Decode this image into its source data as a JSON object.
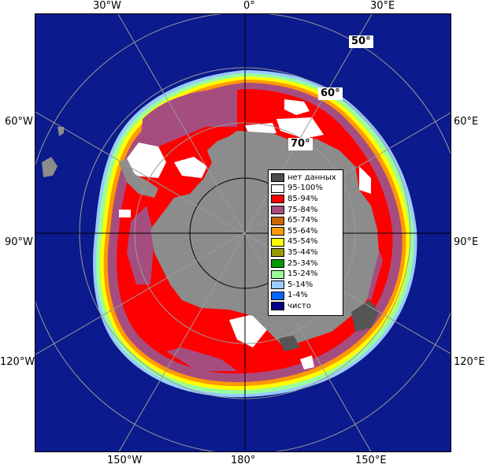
{
  "map": {
    "longitude_labels": {
      "top_30w": "30°W",
      "top_0": "0°",
      "top_30e": "30°E",
      "left_60w": "60°W",
      "left_90w": "90°W",
      "left_120w": "120°W",
      "right_60e": "60°E",
      "right_90e": "90°E",
      "right_120e": "120°E",
      "bottom_150w": "150°W",
      "bottom_180": "180°",
      "bottom_150e": "150°E"
    },
    "latitude_labels": {
      "lat50": "50°",
      "lat60": "60°",
      "lat70": "70°"
    },
    "colors": {
      "ocean": "#0b1a8c",
      "land": "#8c8c8c",
      "land_dark": "#555555",
      "grid": "#9a9a9a"
    }
  },
  "legend": {
    "items": [
      {
        "label": "нет данных",
        "color": "#4d4d4d"
      },
      {
        "label": "95-100%",
        "color": "#ffffff"
      },
      {
        "label": "85-94%",
        "color": "#ff0000"
      },
      {
        "label": "75-84%",
        "color": "#a64d80"
      },
      {
        "label": "65-74%",
        "color": "#cc6600"
      },
      {
        "label": "55-64%",
        "color": "#ff9900"
      },
      {
        "label": "45-54%",
        "color": "#ffff00"
      },
      {
        "label": "35-44%",
        "color": "#999900"
      },
      {
        "label": "25-34%",
        "color": "#009900"
      },
      {
        "label": "15-24%",
        "color": "#99ff99"
      },
      {
        "label": "5-14%",
        "color": "#99ccff"
      },
      {
        "label": "1-4%",
        "color": "#0066ff"
      },
      {
        "label": "чисто",
        "color": "#000080"
      }
    ]
  }
}
